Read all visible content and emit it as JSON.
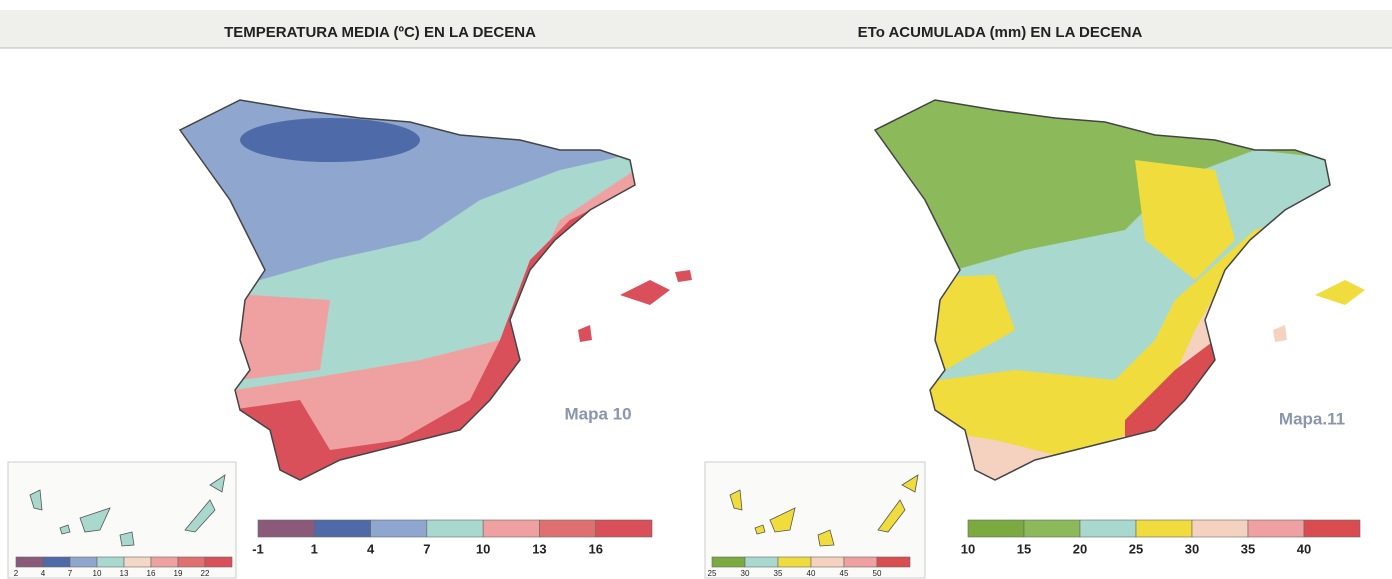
{
  "maps": [
    {
      "title": "TEMPERATURA MEDIA (ºC) EN LA DECENA",
      "label": "Mapa 10",
      "legend": {
        "colors": [
          "#8b5a7a",
          "#4f6aa8",
          "#8fa6cf",
          "#a9d8cf",
          "#efa0a0",
          "#e07070",
          "#d9505a"
        ],
        "labels": [
          "-1",
          "1",
          "4",
          "7",
          "10",
          "13",
          "16"
        ]
      },
      "inset_legend": {
        "colors": [
          "#8b5a7a",
          "#4f6aa8",
          "#8fa6cf",
          "#a9d8cf",
          "#f3d8c8",
          "#efa0a0",
          "#e07070",
          "#d9505a"
        ],
        "labels": [
          "2",
          "4",
          "7",
          "10",
          "13",
          "16",
          "19",
          "22"
        ]
      }
    },
    {
      "title": "ETo ACUMULADA (mm) EN LA DECENA",
      "label": "Mapa.11",
      "legend": {
        "colors": [
          "#7aaa40",
          "#8cba5a",
          "#a9d8cf",
          "#f0dc3c",
          "#f5d2c0",
          "#efa0a0",
          "#d94c50"
        ],
        "labels": [
          "10",
          "15",
          "20",
          "25",
          "30",
          "35",
          "40"
        ]
      },
      "inset_legend": {
        "colors": [
          "#7aaa40",
          "#a9d8cf",
          "#f0dc3c",
          "#f5d2c0",
          "#efa0a0",
          "#d94c50"
        ],
        "labels": [
          "25",
          "30",
          "35",
          "40",
          "45",
          "50"
        ]
      }
    }
  ]
}
